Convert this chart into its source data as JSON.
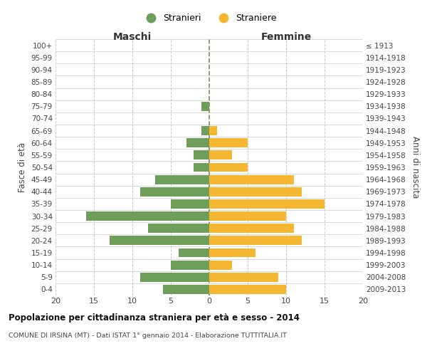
{
  "age_groups": [
    "0-4",
    "5-9",
    "10-14",
    "15-19",
    "20-24",
    "25-29",
    "30-34",
    "35-39",
    "40-44",
    "45-49",
    "50-54",
    "55-59",
    "60-64",
    "65-69",
    "70-74",
    "75-79",
    "80-84",
    "85-89",
    "90-94",
    "95-99",
    "100+"
  ],
  "birth_years": [
    "2009-2013",
    "2004-2008",
    "1999-2003",
    "1994-1998",
    "1989-1993",
    "1984-1988",
    "1979-1983",
    "1974-1978",
    "1969-1973",
    "1964-1968",
    "1959-1963",
    "1954-1958",
    "1949-1953",
    "1944-1948",
    "1939-1943",
    "1934-1938",
    "1929-1933",
    "1924-1928",
    "1919-1923",
    "1914-1918",
    "≤ 1913"
  ],
  "males": [
    6,
    9,
    5,
    4,
    13,
    8,
    16,
    5,
    9,
    7,
    2,
    2,
    3,
    1,
    0,
    1,
    0,
    0,
    0,
    0,
    0
  ],
  "females": [
    10,
    9,
    3,
    6,
    12,
    11,
    10,
    15,
    12,
    11,
    5,
    3,
    5,
    1,
    0,
    0,
    0,
    0,
    0,
    0,
    0
  ],
  "male_color": "#6f9e5a",
  "female_color": "#f5b731",
  "grid_color": "#cccccc",
  "center_line_color": "#888855",
  "title_main": "Popolazione per cittadinanza straniera per età e sesso - 2014",
  "title_sub": "COMUNE DI IRSINA (MT) - Dati ISTAT 1° gennaio 2014 - Elaborazione TUTTITALIA.IT",
  "xlabel_left": "Maschi",
  "xlabel_right": "Femmine",
  "ylabel_left": "Fasce di età",
  "ylabel_right": "Anni di nascita",
  "legend_male": "Stranieri",
  "legend_female": "Straniere",
  "xlim": 20,
  "background_color": "#ffffff"
}
